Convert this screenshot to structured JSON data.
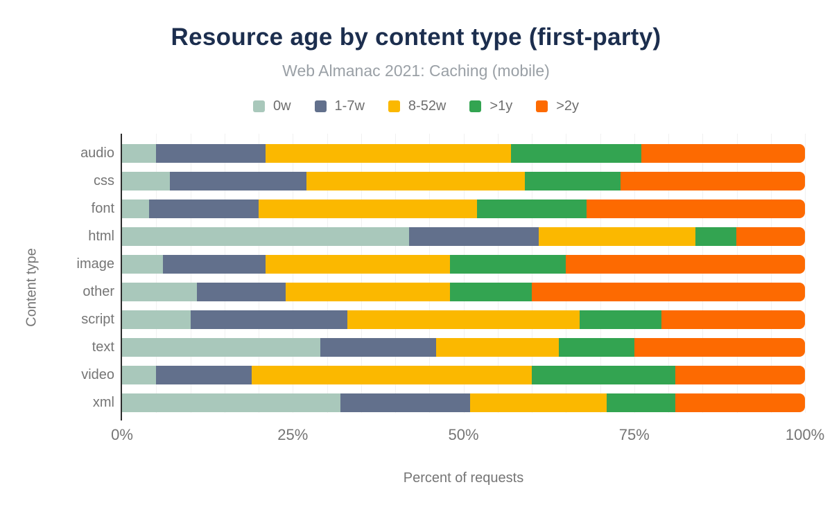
{
  "chart_data": {
    "type": "bar",
    "orientation": "horizontal",
    "stacked": true,
    "title": "Resource age by content type (first-party)",
    "subtitle": "Web Almanac 2021: Caching (mobile)",
    "xlabel": "Percent of requests",
    "ylabel": "Content type",
    "categories": [
      "audio",
      "css",
      "font",
      "html",
      "image",
      "other",
      "script",
      "text",
      "video",
      "xml"
    ],
    "series": [
      {
        "name": "0w",
        "color": "#a9c8bb",
        "values": [
          5,
          7,
          4,
          42,
          6,
          11,
          10,
          29,
          5,
          32
        ]
      },
      {
        "name": "1-7w",
        "color": "#62708c",
        "values": [
          16,
          20,
          16,
          19,
          15,
          13,
          23,
          17,
          14,
          19
        ]
      },
      {
        "name": "8-52w",
        "color": "#fbb800",
        "values": [
          36,
          32,
          32,
          23,
          27,
          24,
          34,
          18,
          41,
          20
        ]
      },
      {
        "name": ">1y",
        "color": "#33a451",
        "values": [
          19,
          14,
          16,
          6,
          17,
          12,
          12,
          11,
          21,
          10
        ]
      },
      {
        "name": ">2y",
        "color": "#fd6a01",
        "values": [
          24,
          27,
          32,
          10,
          35,
          40,
          21,
          25,
          19,
          19
        ]
      }
    ],
    "x_ticks": [
      "0%",
      "25%",
      "50%",
      "75%",
      "100%"
    ],
    "xlim": [
      0,
      100
    ],
    "grid": "vertical gridlines every 5%",
    "legend_position": "top"
  },
  "style_colors": {
    "title": "#1c2e4e",
    "subtitle": "#9aa0a6",
    "axis_text": "#757575",
    "axis_line": "#2b2b2b",
    "gridline": "#f1f1f1",
    "background": "#ffffff"
  }
}
